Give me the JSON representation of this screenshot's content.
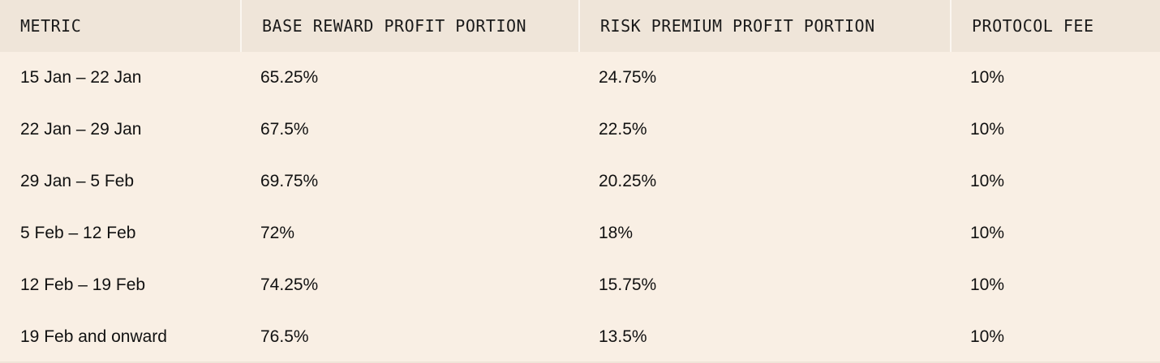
{
  "table": {
    "header": [
      "METRIC",
      "BASE REWARD PROFIT PORTION",
      "RISK PREMIUM PROFIT PORTION",
      "PROTOCOL FEE"
    ],
    "rows": [
      [
        "15 Jan – 22 Jan",
        "65.25%",
        "24.75%",
        "10%"
      ],
      [
        "22 Jan – 29 Jan",
        "67.5%",
        "22.5%",
        "10%"
      ],
      [
        "29 Jan – 5 Feb",
        "69.75%",
        "20.25%",
        "10%"
      ],
      [
        "5 Feb – 12 Feb",
        "72%",
        "18%",
        "10%"
      ],
      [
        "12 Feb – 19 Feb",
        "74.25%",
        "15.75%",
        "10%"
      ],
      [
        "19 Feb and onward",
        "76.5%",
        "13.5%",
        "10%"
      ]
    ]
  }
}
